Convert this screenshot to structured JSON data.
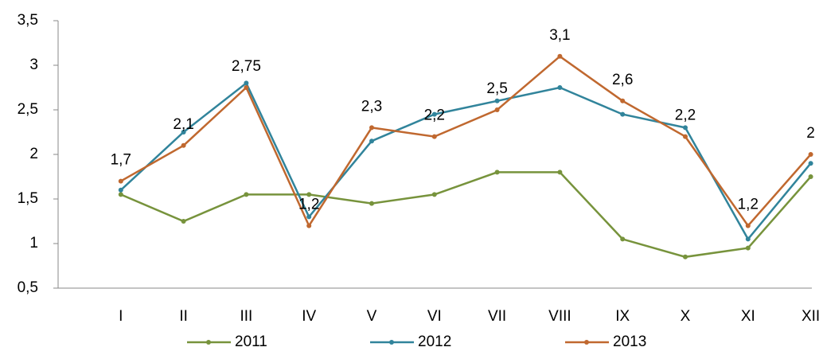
{
  "chart_data": {
    "type": "line",
    "categories": [
      "I",
      "II",
      "III",
      "IV",
      "V",
      "VI",
      "VII",
      "VIII",
      "IX",
      "X",
      "XI",
      "XII"
    ],
    "series": [
      {
        "name": "2011",
        "color": "#77933c",
        "values": [
          1.55,
          1.25,
          1.55,
          1.55,
          1.45,
          1.55,
          1.8,
          1.8,
          1.05,
          0.85,
          0.95,
          1.75
        ]
      },
      {
        "name": "2012",
        "color": "#31849b",
        "values": [
          1.6,
          2.25,
          2.8,
          1.3,
          2.15,
          2.45,
          2.6,
          2.75,
          2.45,
          2.3,
          1.05,
          1.9
        ]
      },
      {
        "name": "2013",
        "color": "#c0682f",
        "values": [
          1.7,
          2.1,
          2.75,
          1.2,
          2.3,
          2.2,
          2.5,
          3.1,
          2.6,
          2.2,
          1.2,
          2
        ],
        "value_labels": [
          "1,7",
          "2,1",
          "2,75",
          "1,2",
          "2,3",
          "2,2",
          "2,5",
          "3,1",
          "2,6",
          "2,2",
          "1,2",
          "2"
        ]
      }
    ],
    "ylim": [
      0.5,
      3.5
    ],
    "yticks": [
      {
        "value": 0.5,
        "label": "0,5"
      },
      1,
      {
        "value": 1.5,
        "label": "1,5"
      },
      2,
      {
        "value": 2.5,
        "label": "2,5"
      },
      3,
      {
        "value": 3.5,
        "label": "3,5"
      }
    ],
    "legend": "bottom"
  }
}
